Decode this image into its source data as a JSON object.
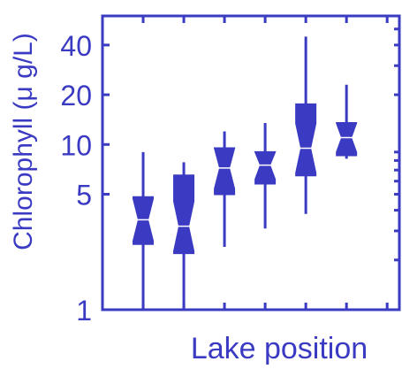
{
  "chart_data": {
    "type": "box",
    "xlabel": "Lake position",
    "ylabel": "Chlorophyll (μ g/L)",
    "yscale": "log",
    "ylim": [
      1,
      60
    ],
    "yticks": [
      1,
      5,
      10,
      20,
      40
    ],
    "ytick_labels": [
      "1",
      "5",
      "10",
      "20",
      "40"
    ],
    "xlim": [
      0,
      7.3
    ],
    "color": "#3a3ac3",
    "boxes": [
      {
        "x": 1,
        "whisker_low": 1.0,
        "q1": 2.5,
        "median": 3.5,
        "q3": 4.8,
        "whisker_high": 9.0
      },
      {
        "x": 2,
        "whisker_low": 1.0,
        "q1": 2.2,
        "median": 3.2,
        "q3": 6.5,
        "whisker_high": 7.8
      },
      {
        "x": 3,
        "whisker_low": 2.4,
        "q1": 5.0,
        "median": 7.2,
        "q3": 9.5,
        "whisker_high": 12.0
      },
      {
        "x": 4,
        "whisker_low": 3.1,
        "q1": 5.8,
        "median": 7.5,
        "q3": 9.0,
        "whisker_high": 13.5
      },
      {
        "x": 5,
        "whisker_low": 3.8,
        "q1": 6.5,
        "median": 9.5,
        "q3": 17.5,
        "whisker_high": 45.0
      },
      {
        "x": 6,
        "whisker_low": 8.2,
        "q1": 8.6,
        "median": 11.0,
        "q3": 13.5,
        "whisker_high": 23.0
      }
    ]
  }
}
